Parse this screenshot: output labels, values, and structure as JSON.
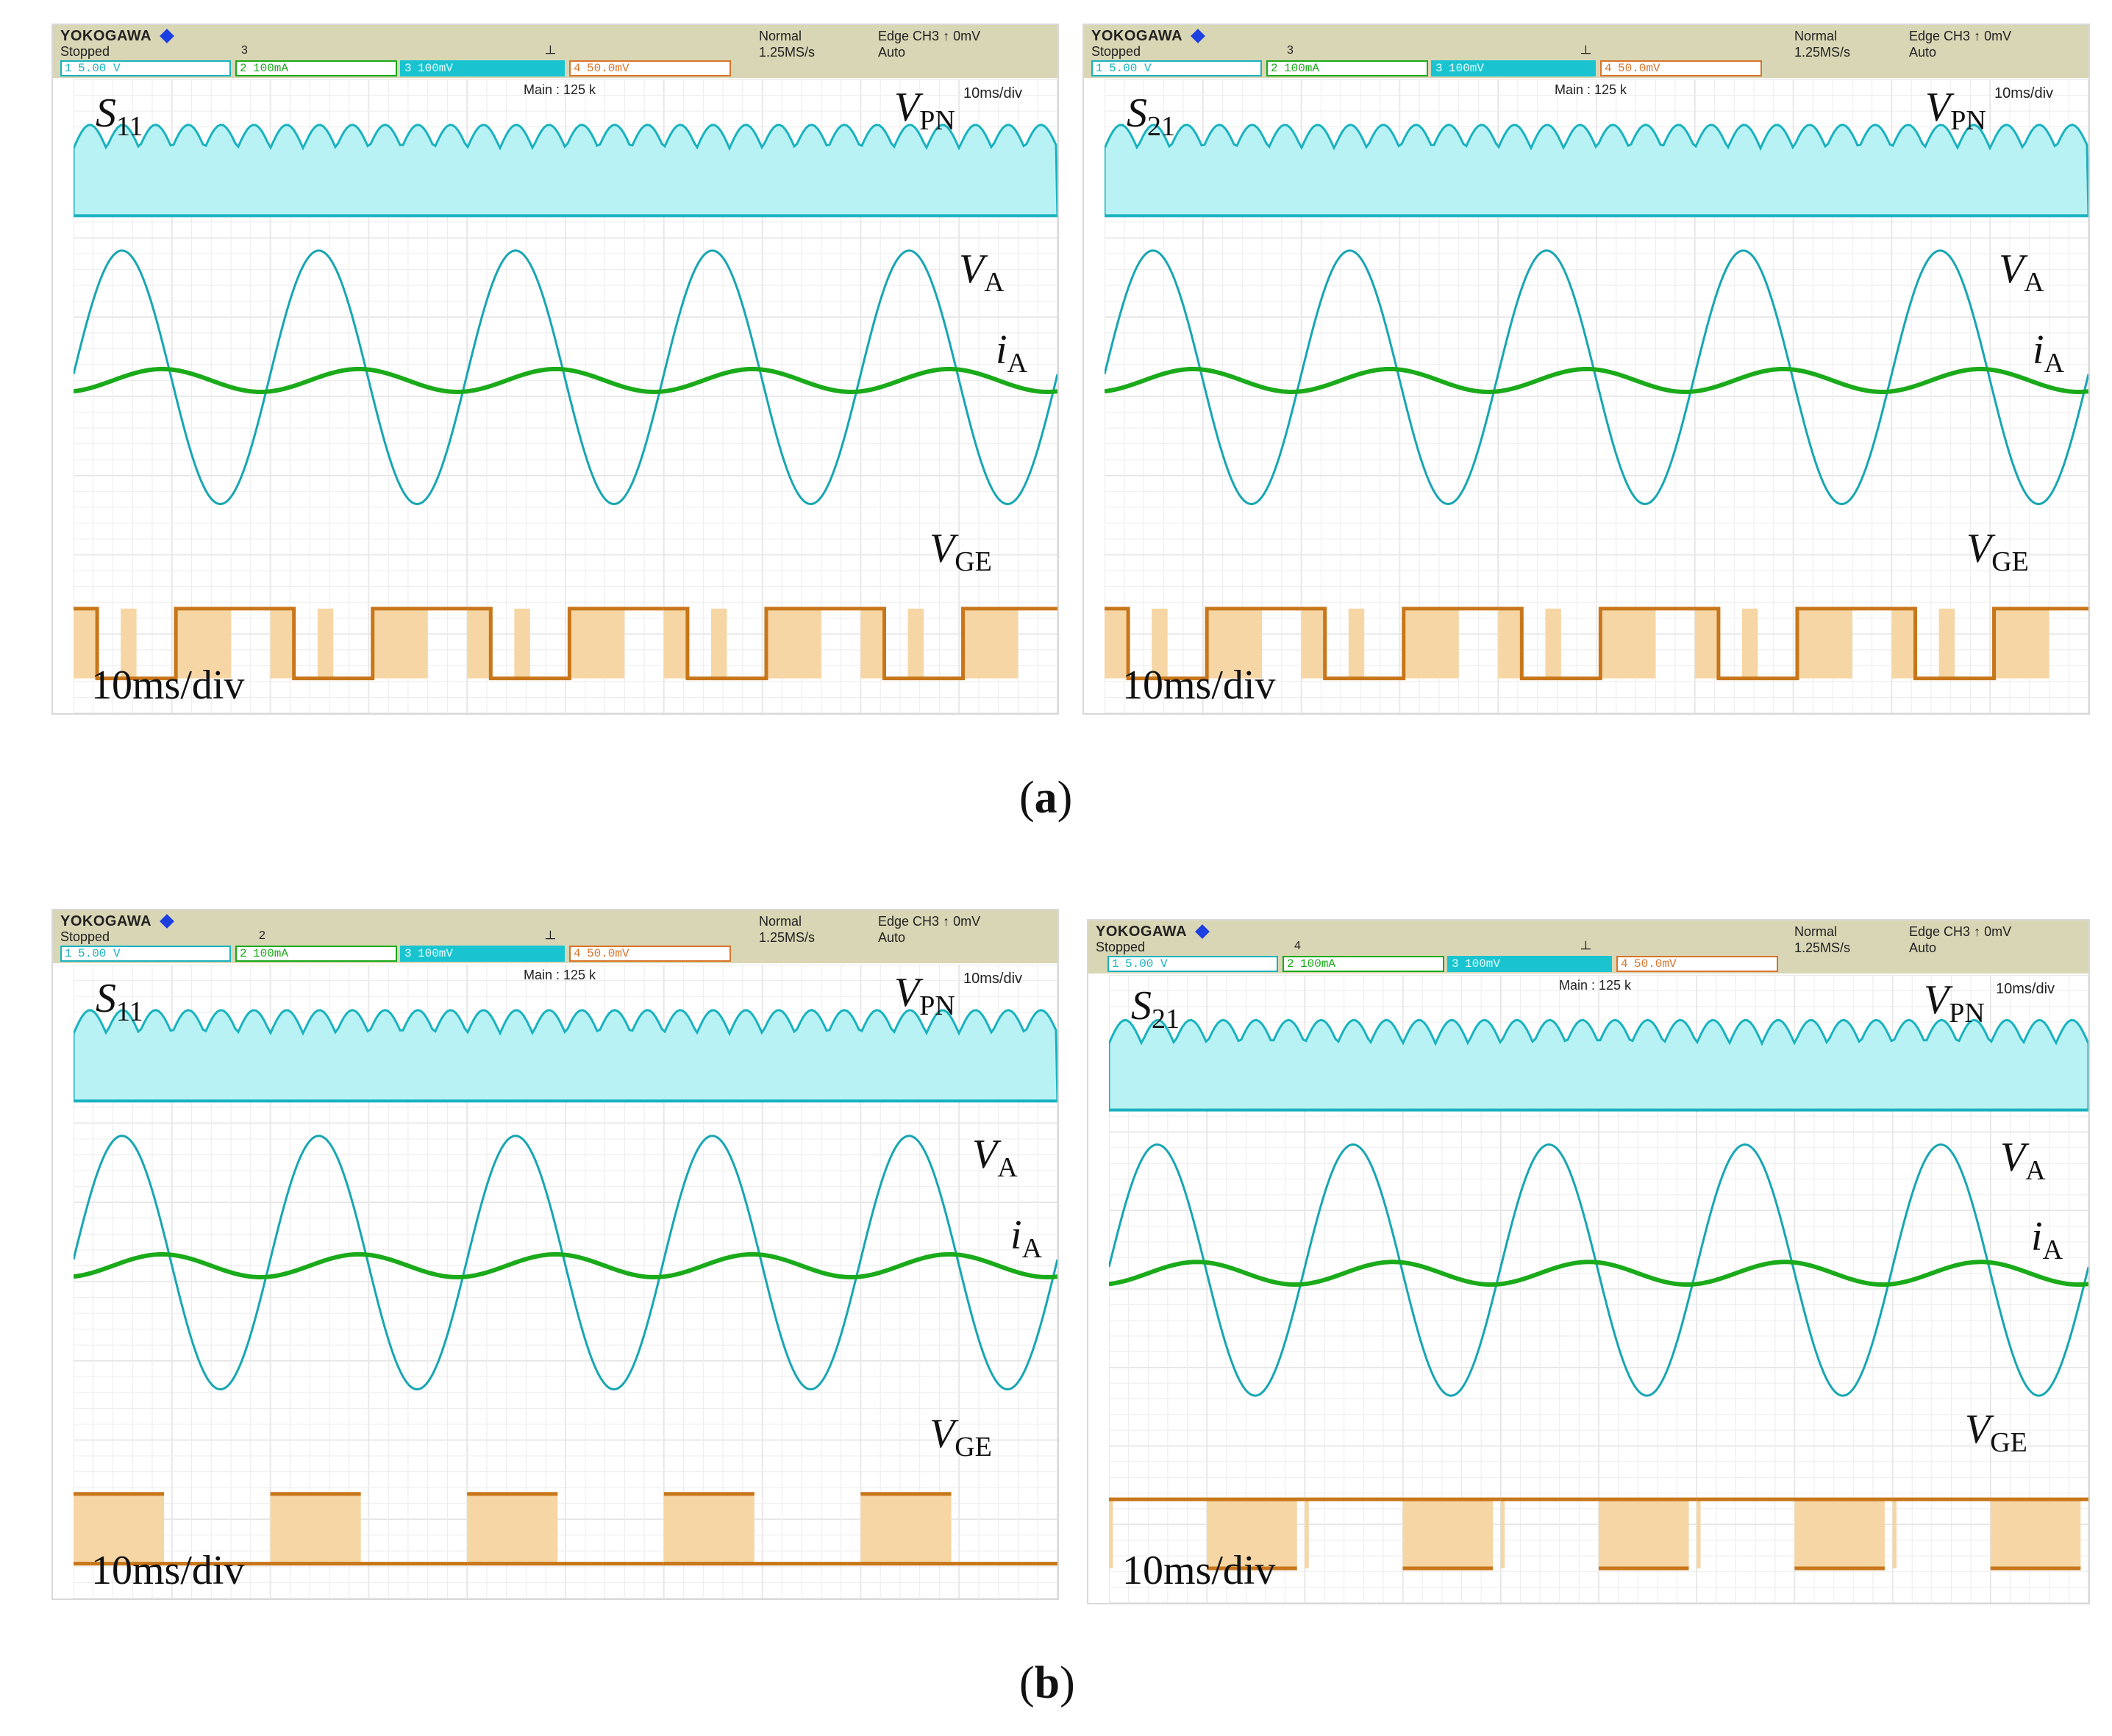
{
  "scopes": [
    {
      "header": {
        "brand": "YOKOGAWA",
        "status": "Stopped",
        "record_count": "3",
        "acq_mode": "Normal",
        "sample_rate": "1.25MS/s",
        "trigger_type": "Edge CH3",
        "trigger_level": "0mV",
        "trigger_mode": "Auto",
        "ch1": {
          "num": "1",
          "scale": "5.00 V"
        },
        "ch2": {
          "num": "2",
          "scale": "100mA"
        },
        "ch3": {
          "num": "3",
          "scale": "100mV"
        },
        "ch4": {
          "num": "4",
          "scale": "50.0mV"
        }
      },
      "main_info": "Main : 125 k",
      "time_div_small": "10ms/div",
      "time_div_big": "10ms/div",
      "switch_label": {
        "symbol": "S",
        "sub": "11"
      },
      "labels": {
        "vpn": {
          "sym": "V",
          "sub": "PN"
        },
        "va": {
          "sym": "V",
          "sub": "A"
        },
        "ia": {
          "sym": "i",
          "sub": "A"
        },
        "vge": {
          "sym": "V",
          "sub": "GE"
        }
      }
    },
    {
      "header": {
        "brand": "YOKOGAWA",
        "status": "Stopped",
        "record_count": "3",
        "acq_mode": "Normal",
        "sample_rate": "1.25MS/s",
        "trigger_type": "Edge CH3",
        "trigger_level": "0mV",
        "trigger_mode": "Auto",
        "ch1": {
          "num": "1",
          "scale": "5.00 V"
        },
        "ch2": {
          "num": "2",
          "scale": "100mA"
        },
        "ch3": {
          "num": "3",
          "scale": "100mV"
        },
        "ch4": {
          "num": "4",
          "scale": "50.0mV"
        }
      },
      "main_info": "Main : 125 k",
      "time_div_small": "10ms/div",
      "time_div_big": "10ms/div",
      "switch_label": {
        "symbol": "S",
        "sub": "21"
      },
      "labels": {
        "vpn": {
          "sym": "V",
          "sub": "PN"
        },
        "va": {
          "sym": "V",
          "sub": "A"
        },
        "ia": {
          "sym": "i",
          "sub": "A"
        },
        "vge": {
          "sym": "V",
          "sub": "GE"
        }
      }
    },
    {
      "header": {
        "brand": "YOKOGAWA",
        "status": "Stopped",
        "record_count": "2",
        "acq_mode": "Normal",
        "sample_rate": "1.25MS/s",
        "trigger_type": "Edge CH3",
        "trigger_level": "0mV",
        "trigger_mode": "Auto",
        "ch1": {
          "num": "1",
          "scale": "5.00 V"
        },
        "ch2": {
          "num": "2",
          "scale": "100mA"
        },
        "ch3": {
          "num": "3",
          "scale": "100mV"
        },
        "ch4": {
          "num": "4",
          "scale": "50.0mV"
        }
      },
      "main_info": "Main : 125 k",
      "time_div_small": "10ms/div",
      "time_div_big": "10ms/div",
      "switch_label": {
        "symbol": "S",
        "sub": "11"
      },
      "labels": {
        "vpn": {
          "sym": "V",
          "sub": "PN"
        },
        "va": {
          "sym": "V",
          "sub": "A"
        },
        "ia": {
          "sym": "i",
          "sub": "A"
        },
        "vge": {
          "sym": "V",
          "sub": "GE"
        }
      }
    },
    {
      "header": {
        "brand": "YOKOGAWA",
        "status": "Stopped",
        "record_count": "4",
        "acq_mode": "Normal",
        "sample_rate": "1.25MS/s",
        "trigger_type": "Edge CH3",
        "trigger_level": "0mV",
        "trigger_mode": "Auto",
        "ch1": {
          "num": "1",
          "scale": "5.00 V"
        },
        "ch2": {
          "num": "2",
          "scale": "100mA"
        },
        "ch3": {
          "num": "3",
          "scale": "100mV"
        },
        "ch4": {
          "num": "4",
          "scale": "50.0mV"
        }
      },
      "main_info": "Main : 125 k",
      "time_div_small": "10ms/div",
      "time_div_big": "10ms/div",
      "switch_label": {
        "symbol": "S",
        "sub": "21"
      },
      "labels": {
        "vpn": {
          "sym": "V",
          "sub": "PN"
        },
        "va": {
          "sym": "V",
          "sub": "A"
        },
        "ia": {
          "sym": "i",
          "sub": "A"
        },
        "vge": {
          "sym": "V",
          "sub": "GE"
        }
      }
    }
  ],
  "captions": {
    "a": "a",
    "b": "b"
  },
  "colors": {
    "vpn": "#19b2bf",
    "vpn_fill": "#b9f2f4",
    "va": "#17a6b2",
    "ia": "#1aaa1a",
    "vge": "#c8761a",
    "vge_fill": "#f6d6a4",
    "grid": "#d4d4d4",
    "header_bg": "#d9d6b5"
  },
  "waveform_pattern": {
    "scope_1": "complementary",
    "scope_2": "complementary",
    "scope_3": "positive-half-pulses",
    "scope_4": "negative-half-pulses"
  }
}
